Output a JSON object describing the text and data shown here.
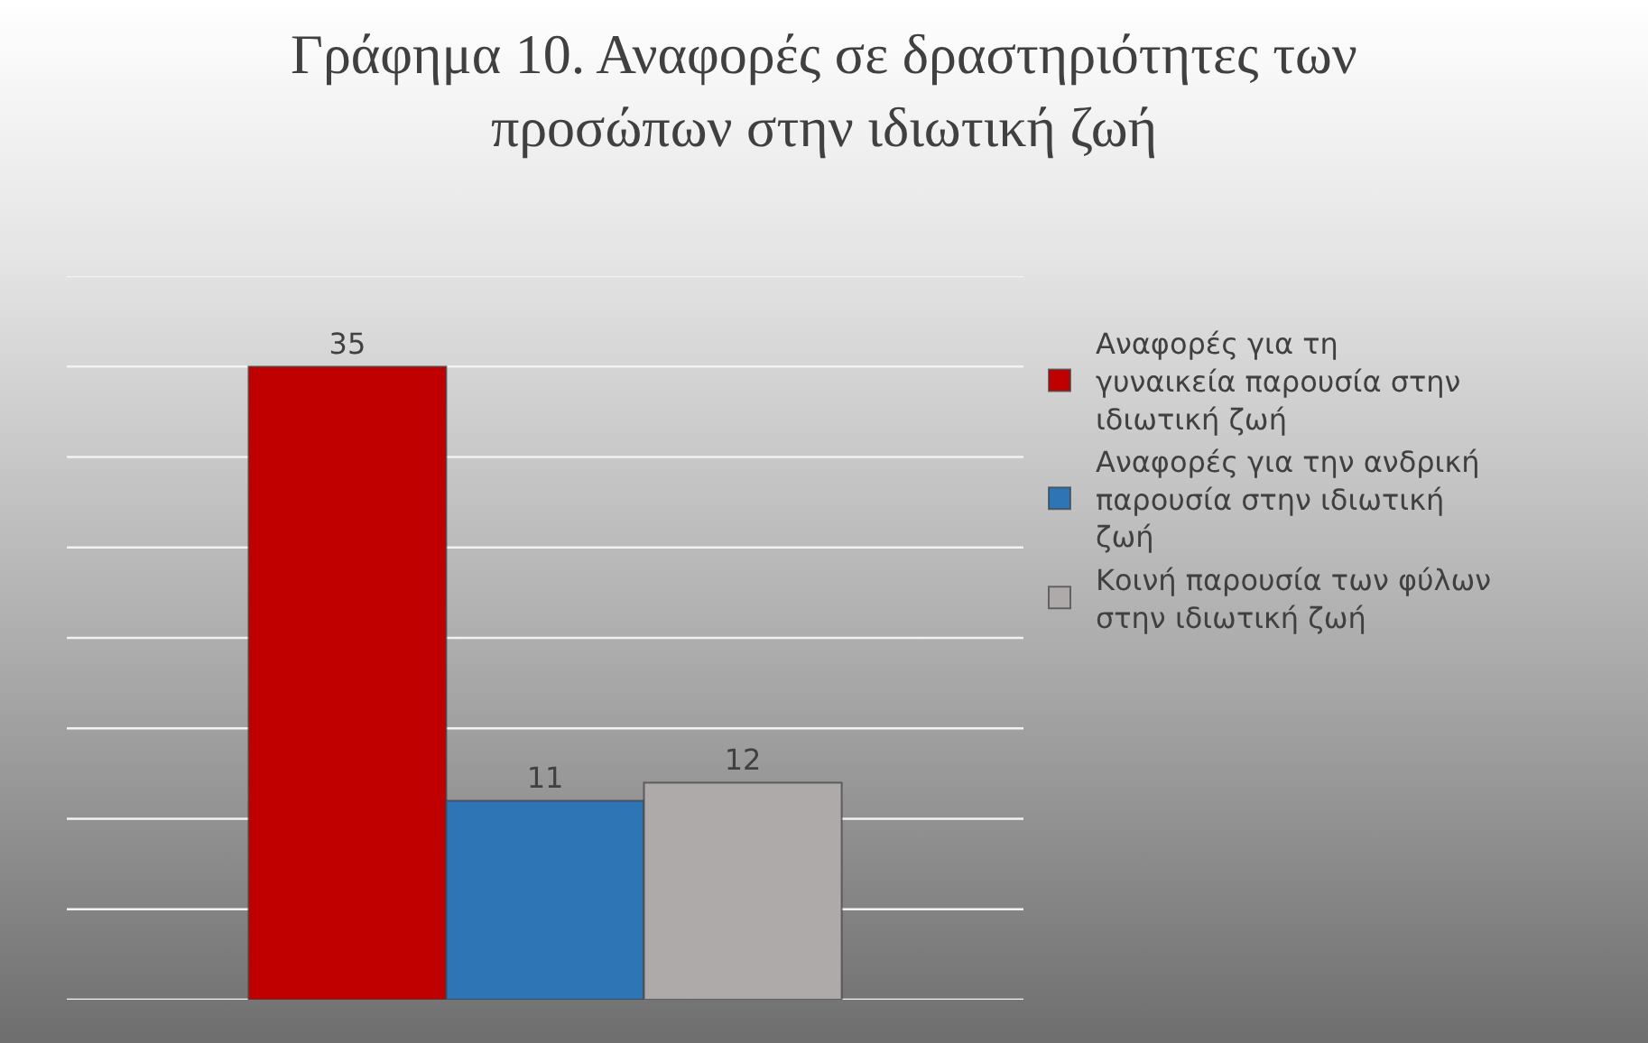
{
  "chart_data": {
    "type": "bar",
    "title": "Γράφημα 10. Αναφορές σε δραστηριότητες των προσώπων στην ιδιωτική ζωή",
    "categories": [
      null
    ],
    "series": [
      {
        "name": "Αναφορές για τη γυναικεία παρουσία στην ιδιωτική ζωή",
        "color": "#c00000",
        "values": [
          35
        ]
      },
      {
        "name": "Αναφορές για την ανδρική παρουσία στην ιδιωτική ζωή",
        "color": "#2e75b6",
        "values": [
          11
        ]
      },
      {
        "name": "Κοινή παρουσία των φύλων στην ιδιωτική ζωή",
        "color": "#aeaaaa",
        "values": [
          12
        ]
      }
    ],
    "ylim": [
      0,
      40
    ],
    "yticks": [
      {
        "value": 0,
        "label": null
      },
      {
        "value": 5,
        "label": null
      },
      {
        "value": 10,
        "label": null
      },
      {
        "value": 15,
        "label": null
      },
      {
        "value": 20,
        "label": null
      },
      {
        "value": 25,
        "label": null
      },
      {
        "value": 30,
        "label": null
      },
      {
        "value": 35,
        "label": null
      },
      {
        "value": 40,
        "label": null
      }
    ],
    "grid": "y",
    "legend": "right",
    "data_labels": true
  }
}
